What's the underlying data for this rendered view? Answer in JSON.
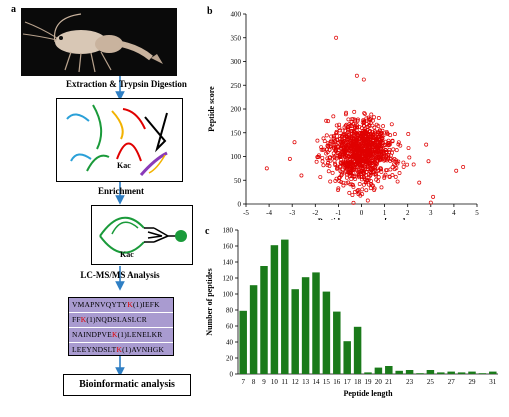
{
  "panel_a": {
    "letter": "a",
    "steps": {
      "extraction": "Extraction & Trypsin Digestion",
      "enrichment": "Enrichment",
      "lcms": "LC-MS/MS Analysis",
      "bioinformatic": "Bioinformatic analysis"
    },
    "kac_label_1": "Kac",
    "kac_label_2": "Kac",
    "sequences": [
      {
        "pre": "VMAPNVQYTY",
        "k": "K",
        "post": "(1)IEFK"
      },
      {
        "pre": "FF",
        "k": "K",
        "post": "(1)NQDSLASLCR"
      },
      {
        "pre": "NAINDPVE",
        "k": "K",
        "post": "(1)LENELKR"
      },
      {
        "pre": "LEEYNDSLT",
        "k": "K",
        "post": "(1)AVNHGK"
      }
    ],
    "colors": {
      "arrow": "#2f7fc4",
      "seq_bg": "#a99bd0",
      "kac_green": "#1a9a3a"
    }
  },
  "chart_data": [
    {
      "panel": "b",
      "type": "scatter",
      "xlabel": "Peptide mass error [ppm]",
      "ylabel": "Peptide score",
      "xlim": [
        -5,
        5
      ],
      "ylim": [
        0,
        400
      ],
      "xticks": [
        -5,
        -4,
        -3,
        -2,
        -1,
        0,
        1,
        2,
        3,
        4,
        5
      ],
      "yticks": [
        0,
        50,
        100,
        150,
        200,
        250,
        300,
        350,
        400
      ],
      "marker_color": "#e00000",
      "outliers": [
        {
          "x": -1.1,
          "y": 350
        },
        {
          "x": -0.2,
          "y": 270
        },
        {
          "x": 0.1,
          "y": 262
        },
        {
          "x": -4.1,
          "y": 75
        },
        {
          "x": 4.1,
          "y": 70
        },
        {
          "x": 4.4,
          "y": 78
        },
        {
          "x": 3.1,
          "y": 15
        },
        {
          "x": 3.0,
          "y": 3
        },
        {
          "x": -3.1,
          "y": 95
        },
        {
          "x": 2.8,
          "y": 125
        },
        {
          "x": -2.6,
          "y": 60
        },
        {
          "x": 2.5,
          "y": 45
        },
        {
          "x": -2.9,
          "y": 130
        },
        {
          "x": 2.9,
          "y": 90
        }
      ],
      "cluster": {
        "center_x": 0.0,
        "center_y": 110,
        "count": 1050
      }
    },
    {
      "panel": "c",
      "type": "bar",
      "xlabel": "Peptide length",
      "ylabel": "Number of peptides",
      "categories": [
        "7",
        "8",
        "9",
        "10",
        "11",
        "12",
        "13",
        "14",
        "15",
        "16",
        "17",
        "18",
        "19",
        "20",
        "21",
        "22",
        "23",
        "24",
        "25",
        "26",
        "27",
        "28",
        "29",
        "30",
        "31"
      ],
      "values": [
        79,
        111,
        135,
        161,
        168,
        106,
        121,
        127,
        103,
        78,
        41,
        59,
        2,
        8,
        10,
        4,
        5,
        1,
        5,
        2,
        3,
        2,
        3,
        1,
        3
      ],
      "x_tick_labels": [
        "7",
        "8",
        "9",
        "10",
        "11",
        "12",
        "13",
        "14",
        "15",
        "16",
        "17",
        "18",
        "19",
        "20",
        "21",
        "23",
        "25",
        "27",
        "29",
        "31"
      ],
      "ylim": [
        0,
        180
      ],
      "yticks": [
        0,
        20,
        40,
        60,
        80,
        100,
        120,
        140,
        160,
        180
      ],
      "bar_color": "#1a7a1a"
    }
  ]
}
